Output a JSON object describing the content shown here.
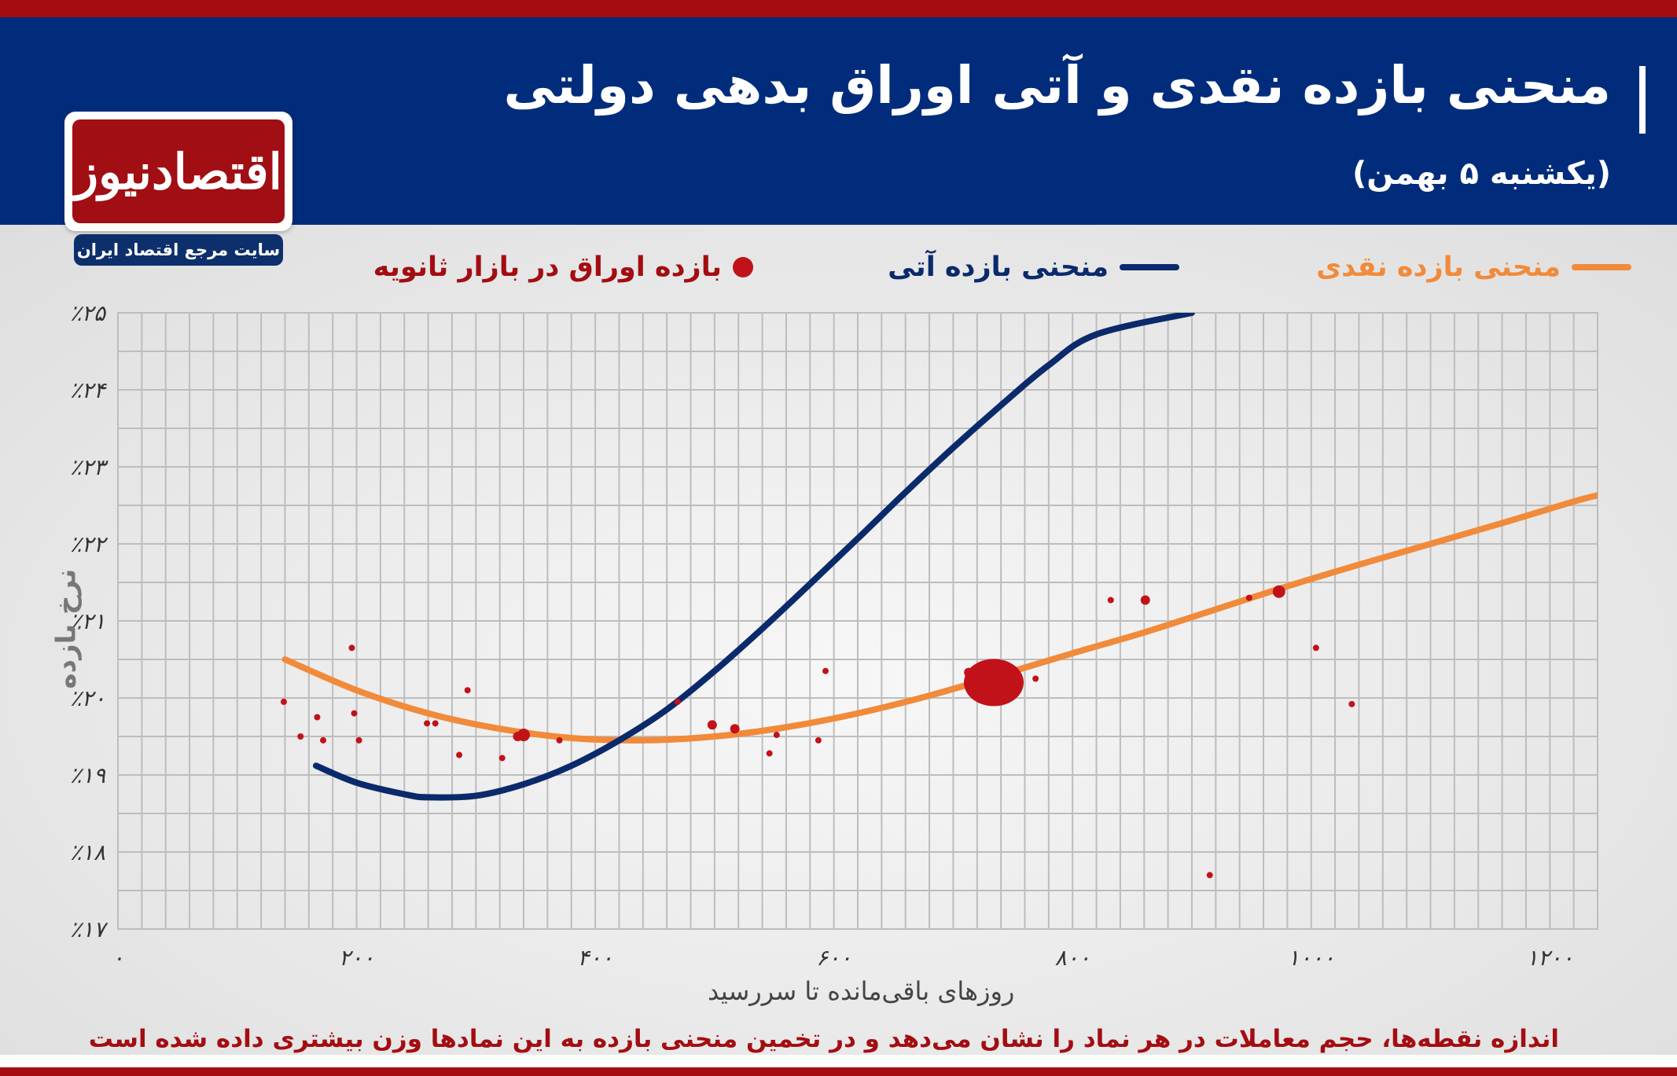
{
  "header": {
    "title": "منحنی بازده نقدی و آتی اوراق بدهی دولتی",
    "subtitle": "(یکشنبه ۵ بهمن)"
  },
  "logo": {
    "name": "اقتصادنیوز",
    "tagline": "سایت مرجع اقتصاد ایران"
  },
  "footnote": "اندازه نقطه‌ها، حجم معاملات در هر نماد را نشان می‌دهد و در تخمین منحنی بازده به این نمادها وزن بیشتری داده شده است",
  "colors": {
    "spot_curve": "#f18a3a",
    "futures_curve": "#0a2a6b",
    "secondary_points": "#c1121a",
    "header_bg": "#002c7b",
    "accent_red": "#a30d12"
  },
  "chart_data": {
    "type": "scatter",
    "xlabel": "روزهای باقی‌مانده تا سررسید",
    "ylabel": "نرخ بازده",
    "xlim": [
      0,
      1240
    ],
    "ylim": [
      17,
      25
    ],
    "x_ticks": [
      0,
      200,
      400,
      600,
      800,
      1000,
      1200
    ],
    "x_tick_labels": [
      "۰",
      "۲۰۰",
      "۴۰۰",
      "۶۰۰",
      "۸۰۰",
      "۱۰۰۰",
      "۱۲۰۰"
    ],
    "y_ticks": [
      17,
      18,
      19,
      20,
      21,
      22,
      23,
      24,
      25
    ],
    "y_tick_labels": [
      "٪۱۷",
      "٪۱۸",
      "٪۱۹",
      "٪۲۰",
      "٪۲۱",
      "٪۲۲",
      "٪۲۳",
      "٪۲۴",
      "٪۲۵"
    ],
    "grid": true,
    "legend_position": "top",
    "series": [
      {
        "name": "منحنی بازده نقدی",
        "kind": "line",
        "color": "#f18a3a",
        "points": [
          [
            140,
            20.5
          ],
          [
            200,
            20.1
          ],
          [
            260,
            19.8
          ],
          [
            320,
            19.6
          ],
          [
            380,
            19.48
          ],
          [
            440,
            19.45
          ],
          [
            500,
            19.5
          ],
          [
            560,
            19.62
          ],
          [
            620,
            19.8
          ],
          [
            680,
            20.03
          ],
          [
            740,
            20.3
          ],
          [
            800,
            20.58
          ],
          [
            860,
            20.85
          ],
          [
            920,
            21.15
          ],
          [
            980,
            21.45
          ],
          [
            1040,
            21.73
          ],
          [
            1100,
            22.0
          ],
          [
            1160,
            22.27
          ],
          [
            1220,
            22.55
          ],
          [
            1240,
            22.63
          ]
        ]
      },
      {
        "name": "منحنی بازده آتی",
        "kind": "line",
        "color": "#0a2a6b",
        "points": [
          [
            166,
            19.12
          ],
          [
            200,
            18.9
          ],
          [
            240,
            18.75
          ],
          [
            260,
            18.71
          ],
          [
            300,
            18.73
          ],
          [
            340,
            18.88
          ],
          [
            380,
            19.12
          ],
          [
            420,
            19.45
          ],
          [
            460,
            19.85
          ],
          [
            500,
            20.35
          ],
          [
            540,
            20.9
          ],
          [
            580,
            21.48
          ],
          [
            620,
            22.07
          ],
          [
            660,
            22.67
          ],
          [
            700,
            23.25
          ],
          [
            740,
            23.8
          ],
          [
            780,
            24.32
          ],
          [
            820,
            24.72
          ],
          [
            900,
            25.0
          ]
        ]
      },
      {
        "name": "بازده اوراق در بازار ثانویه",
        "kind": "scatter",
        "color": "#c1121a",
        "points": [
          {
            "x": 139,
            "y": 19.95,
            "size": 1
          },
          {
            "x": 153,
            "y": 19.5,
            "size": 1
          },
          {
            "x": 167,
            "y": 19.75,
            "size": 1
          },
          {
            "x": 172,
            "y": 19.45,
            "size": 1
          },
          {
            "x": 196,
            "y": 20.65,
            "size": 1
          },
          {
            "x": 198,
            "y": 19.8,
            "size": 1
          },
          {
            "x": 202,
            "y": 19.45,
            "size": 1
          },
          {
            "x": 259,
            "y": 19.67,
            "size": 1
          },
          {
            "x": 266,
            "y": 19.67,
            "size": 1
          },
          {
            "x": 286,
            "y": 19.26,
            "size": 1
          },
          {
            "x": 293,
            "y": 20.1,
            "size": 1
          },
          {
            "x": 322,
            "y": 19.22,
            "size": 1
          },
          {
            "x": 335,
            "y": 19.5,
            "size": 2
          },
          {
            "x": 340,
            "y": 19.52,
            "size": 3
          },
          {
            "x": 370,
            "y": 19.45,
            "size": 1
          },
          {
            "x": 469,
            "y": 19.95,
            "size": 1
          },
          {
            "x": 498,
            "y": 19.65,
            "size": 2
          },
          {
            "x": 517,
            "y": 19.6,
            "size": 2
          },
          {
            "x": 546,
            "y": 19.28,
            "size": 1
          },
          {
            "x": 552,
            "y": 19.52,
            "size": 1
          },
          {
            "x": 587,
            "y": 19.45,
            "size": 1
          },
          {
            "x": 593,
            "y": 20.35,
            "size": 1
          },
          {
            "x": 713,
            "y": 20.33,
            "size": 2
          },
          {
            "x": 734,
            "y": 20.2,
            "size": 12
          },
          {
            "x": 769,
            "y": 20.25,
            "size": 1
          },
          {
            "x": 832,
            "y": 21.27,
            "size": 1
          },
          {
            "x": 861,
            "y": 21.27,
            "size": 2
          },
          {
            "x": 915,
            "y": 17.7,
            "size": 1
          },
          {
            "x": 948,
            "y": 21.3,
            "size": 1
          },
          {
            "x": 973,
            "y": 21.38,
            "size": 3
          },
          {
            "x": 1004,
            "y": 20.65,
            "size": 1
          },
          {
            "x": 1034,
            "y": 19.92,
            "size": 1
          }
        ]
      }
    ]
  }
}
